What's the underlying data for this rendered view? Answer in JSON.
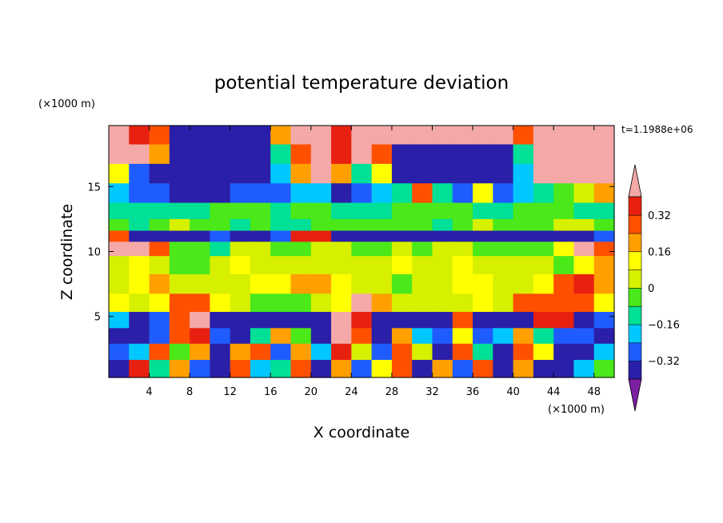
{
  "chart_data": {
    "type": "heatmap",
    "title": "potential temperature deviation",
    "xlabel": "X coordinate",
    "ylabel": "Z coordinate",
    "x_unit": "(×1000 m)",
    "y_unit": "(×1000 m)",
    "time_label": "t=1.1988e+06",
    "xlim": [
      0,
      50
    ],
    "ylim": [
      0.3,
      19.7
    ],
    "x_ticks": [
      4,
      8,
      12,
      16,
      20,
      24,
      28,
      32,
      36,
      40,
      44,
      48
    ],
    "x_tick_labels": [
      "4",
      "8",
      "12",
      "16",
      "20",
      "24",
      "28",
      "32",
      "36",
      "40",
      "44",
      "48"
    ],
    "y_ticks": [
      5,
      10,
      15
    ],
    "y_tick_labels": [
      "5",
      "10",
      "15"
    ],
    "grid": false,
    "colorbar": {
      "position": "right",
      "levels": [
        -0.4,
        -0.32,
        -0.24,
        -0.16,
        -0.08,
        0,
        0.08,
        0.16,
        0.24,
        0.32,
        0.4
      ],
      "tick_labels": [
        "0.32",
        "0.16",
        "0",
        "−0.16",
        "−0.32"
      ],
      "tick_values": [
        0.32,
        0.16,
        0,
        -0.16,
        -0.32
      ],
      "colors": [
        "#7b1fa2",
        "#2a1fa8",
        "#1f5cff",
        "#00c8ff",
        "#00e096",
        "#4be81a",
        "#d6f000",
        "#ffff00",
        "#ffa000",
        "#ff5000",
        "#e82010",
        "#f4a9a8"
      ]
    },
    "field": {
      "x_centers": [
        1,
        3,
        5,
        7,
        9,
        11,
        13,
        15,
        17,
        19,
        21,
        23,
        25,
        27,
        29,
        31,
        33,
        35,
        37,
        39,
        41,
        43,
        45,
        47,
        49
      ],
      "z_centers": [
        19,
        17.5,
        16,
        14.5,
        13,
        12,
        11.2,
        10.3,
        9,
        7.5,
        6,
        4.7,
        3.5,
        2.3,
        1
      ],
      "values": [
        [
          0.4,
          0.34,
          0.26,
          -0.38,
          -0.4,
          -0.4,
          -0.4,
          -0.4,
          0.2,
          0.4,
          0.4,
          0.36,
          0.4,
          0.4,
          0.4,
          0.4,
          0.4,
          0.4,
          0.4,
          0.4,
          0.3,
          0.4,
          0.4,
          0.4,
          0.4
        ],
        [
          0.4,
          0.4,
          0.2,
          -0.4,
          -0.4,
          -0.4,
          -0.4,
          -0.4,
          -0.1,
          0.3,
          0.4,
          0.36,
          0.4,
          0.3,
          -0.4,
          -0.4,
          -0.4,
          -0.4,
          -0.4,
          -0.4,
          -0.1,
          0.4,
          0.4,
          0.4,
          0.4
        ],
        [
          0.12,
          -0.3,
          -0.35,
          -0.4,
          -0.4,
          -0.4,
          -0.4,
          -0.4,
          -0.2,
          0.2,
          0.4,
          0.22,
          -0.1,
          0.1,
          -0.4,
          -0.4,
          -0.4,
          -0.4,
          -0.4,
          -0.38,
          -0.2,
          0.4,
          0.4,
          0.4,
          0.4
        ],
        [
          -0.22,
          -0.28,
          -0.3,
          -0.33,
          -0.34,
          -0.34,
          -0.3,
          -0.28,
          -0.26,
          -0.2,
          -0.24,
          -0.33,
          -0.3,
          -0.2,
          -0.14,
          0.28,
          -0.16,
          -0.3,
          0.1,
          -0.26,
          -0.18,
          -0.1,
          -0.04,
          0.02,
          0.18
        ],
        [
          -0.1,
          -0.12,
          -0.1,
          -0.12,
          -0.14,
          -0.08,
          -0.06,
          -0.05,
          -0.1,
          -0.08,
          -0.06,
          -0.12,
          -0.1,
          -0.12,
          -0.04,
          -0.08,
          -0.06,
          -0.02,
          -0.1,
          -0.12,
          -0.08,
          -0.04,
          -0.06,
          -0.1,
          -0.12
        ],
        [
          -0.08,
          -0.1,
          -0.06,
          0.02,
          -0.04,
          -0.06,
          -0.1,
          -0.08,
          -0.12,
          -0.1,
          -0.04,
          -0.02,
          -0.08,
          -0.06,
          -0.04,
          -0.06,
          -0.1,
          -0.08,
          0.02,
          -0.02,
          -0.06,
          -0.08,
          0.02,
          0.04,
          -0.02
        ],
        [
          0.3,
          -0.34,
          -0.38,
          -0.38,
          -0.38,
          -0.3,
          -0.36,
          -0.38,
          -0.3,
          0.38,
          0.38,
          -0.38,
          -0.38,
          -0.38,
          -0.38,
          -0.38,
          -0.38,
          -0.38,
          -0.38,
          -0.38,
          -0.38,
          -0.38,
          -0.38,
          -0.36,
          -0.3
        ],
        [
          0.4,
          0.4,
          0.24,
          -0.02,
          -0.06,
          -0.1,
          0.02,
          0.04,
          -0.02,
          -0.04,
          0.02,
          0.06,
          -0.04,
          -0.02,
          0.02,
          -0.02,
          0.04,
          0.02,
          -0.02,
          -0.04,
          -0.02,
          -0.08,
          0.1,
          0.4,
          0.3
        ],
        [
          0.04,
          0.08,
          0.02,
          -0.02,
          -0.04,
          0.06,
          0.08,
          0.04,
          0.02,
          0.06,
          0.06,
          0.04,
          0.02,
          0.06,
          0.1,
          0.06,
          0.04,
          0.08,
          0.06,
          0.02,
          0.04,
          0.02,
          -0.02,
          0.1,
          0.2
        ],
        [
          0.06,
          0.12,
          0.16,
          0.06,
          0.04,
          0.02,
          0.06,
          0.1,
          0.14,
          0.18,
          0.22,
          0.1,
          0.06,
          0.02,
          -0.02,
          0.02,
          0.06,
          0.1,
          0.08,
          0.04,
          0.02,
          0.14,
          0.3,
          0.34,
          0.2
        ],
        [
          0.1,
          0.04,
          0.14,
          0.24,
          0.3,
          0.14,
          0.04,
          -0.02,
          -0.06,
          -0.04,
          0.02,
          0.1,
          0.4,
          0.2,
          0.06,
          0.04,
          0.02,
          0.06,
          0.1,
          0.04,
          0.3,
          0.26,
          0.3,
          0.24,
          0.1
        ],
        [
          -0.22,
          -0.38,
          -0.32,
          0.3,
          0.4,
          -0.34,
          -0.4,
          -0.4,
          -0.4,
          -0.4,
          -0.38,
          0.4,
          0.32,
          -0.36,
          -0.4,
          -0.4,
          -0.38,
          0.3,
          -0.4,
          -0.4,
          -0.38,
          0.36,
          0.38,
          -0.38,
          -0.3
        ],
        [
          -0.36,
          -0.4,
          -0.26,
          0.3,
          0.36,
          -0.3,
          -0.38,
          -0.1,
          0.22,
          -0.06,
          -0.38,
          0.4,
          0.26,
          -0.38,
          0.18,
          -0.2,
          -0.3,
          0.12,
          -0.32,
          -0.18,
          0.2,
          -0.12,
          -0.32,
          -0.3,
          -0.36
        ],
        [
          -0.3,
          -0.18,
          0.3,
          -0.02,
          0.2,
          -0.34,
          0.16,
          0.28,
          -0.3,
          0.22,
          -0.2,
          0.36,
          0.06,
          -0.26,
          0.3,
          0.06,
          -0.34,
          0.28,
          -0.1,
          -0.34,
          0.26,
          0.1,
          -0.38,
          -0.34,
          -0.2
        ],
        [
          -0.34,
          0.34,
          -0.16,
          0.18,
          -0.3,
          -0.38,
          0.28,
          -0.22,
          -0.12,
          0.3,
          -0.36,
          0.2,
          -0.3,
          0.14,
          0.24,
          -0.36,
          0.2,
          -0.32,
          0.3,
          -0.4,
          0.18,
          -0.36,
          -0.4,
          -0.22,
          -0.08
        ]
      ]
    }
  }
}
